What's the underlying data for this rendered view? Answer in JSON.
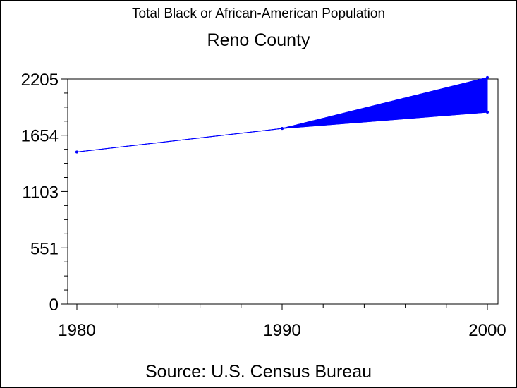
{
  "chart_data": {
    "type": "area",
    "title": "Total Black or African-American Population",
    "subtitle": "Reno County",
    "footnote": "Source: U.S. Census Bureau",
    "xlabel": "",
    "ylabel": "",
    "x_ticks": [
      "1980",
      "1990",
      "2000"
    ],
    "y_ticks": [
      "0",
      "551",
      "1103",
      "1654",
      "2205"
    ],
    "xlim": [
      1980,
      2000
    ],
    "ylim": [
      0,
      2205
    ],
    "grid": false,
    "series": [
      {
        "values": [
          {
            "x": 1980,
            "y": 1490
          },
          {
            "x": 1990,
            "y": 1720
          },
          {
            "x": 2000,
            "y": 1880
          }
        ]
      },
      {
        "values": [
          {
            "x": 1980,
            "y": 1490
          },
          {
            "x": 1990,
            "y": 1720
          },
          {
            "x": 2000,
            "y": 2220
          }
        ]
      }
    ],
    "fill_between_series": true,
    "colors": {
      "series": "#0000ff",
      "axis": "#000000"
    }
  }
}
